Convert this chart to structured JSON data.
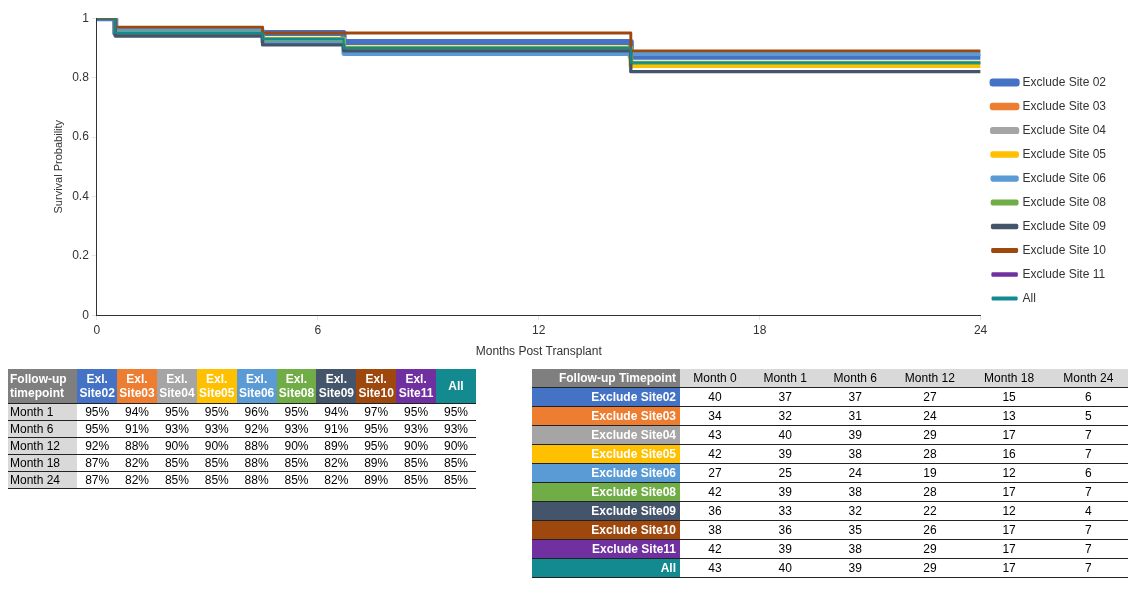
{
  "chart_data": [
    {
      "type": "step",
      "xlabel": "Months Post Transplant",
      "ylabel": "Survival Probability",
      "x": [
        0,
        0.5,
        4.5,
        6.7,
        14.5,
        24
      ],
      "xlim": [
        0,
        24
      ],
      "xticks": [
        0,
        6,
        12,
        18,
        24
      ],
      "ylim": [
        0,
        1
      ],
      "yticks": [
        0,
        0.2,
        0.4,
        0.6,
        0.8,
        1
      ],
      "grid": false,
      "legend": "right",
      "marker": "none",
      "series": [
        {
          "name": "Exclude Site 02",
          "color": "#4472c4",
          "values": [
            1,
            0.95,
            0.95,
            0.92,
            0.87,
            0.87
          ]
        },
        {
          "name": "Exclude Site 03",
          "color": "#ed7d31",
          "values": [
            null,
            null,
            null,
            null,
            null,
            null
          ]
        },
        {
          "name": "Exclude Site 04",
          "color": "#a5a5a5",
          "values": [
            null,
            null,
            null,
            null,
            null,
            null
          ]
        },
        {
          "name": "Exclude Site 05",
          "color": "#ffc000",
          "values": [
            null,
            null,
            0.93,
            0.9,
            0.84,
            0.84
          ]
        },
        {
          "name": "Exclude Site 06",
          "color": "#5b9bd5",
          "values": [
            1,
            0.96,
            0.92,
            0.88,
            0.88,
            0.88
          ]
        },
        {
          "name": "Exclude Site 08",
          "color": "#70ad47",
          "values": [
            1,
            0.95,
            0.93,
            0.9,
            0.85,
            0.85
          ]
        },
        {
          "name": "Exclude Site 09",
          "color": "#44546a",
          "values": [
            1,
            0.94,
            0.91,
            0.89,
            0.82,
            0.82
          ]
        },
        {
          "name": "Exclude Site 10",
          "color": "#9e480e",
          "values": [
            1,
            0.97,
            0.95,
            0.95,
            0.89,
            0.89
          ]
        },
        {
          "name": "Exclude Site 11",
          "color": "#7030a0",
          "values": [
            null,
            null,
            null,
            null,
            null,
            null
          ]
        },
        {
          "name": "All",
          "color": "#138a8f",
          "values": [
            1,
            0.95,
            0.93,
            0.9,
            0.85,
            0.85
          ]
        }
      ]
    },
    {
      "type": "heatmap",
      "data_labels": true,
      "title": "Follow-up timepoint",
      "categories": [
        "Exl. Site02",
        "Exl. Site03",
        "Exl. Site04",
        "Exl. Site05",
        "Exl. Site06",
        "Exl. Site08",
        "Exl. Site09",
        "Exl. Site10",
        "Exl. Site11",
        "All"
      ],
      "y_categories": [
        "Month 1",
        "Month 6",
        "Month 12",
        "Month 18",
        "Month 24"
      ],
      "cells": [
        [
          95,
          94,
          95,
          95,
          96,
          95,
          94,
          97,
          95,
          95
        ],
        [
          95,
          91,
          93,
          93,
          92,
          93,
          91,
          95,
          93,
          93
        ],
        [
          92,
          88,
          90,
          90,
          88,
          90,
          89,
          95,
          90,
          90
        ],
        [
          87,
          82,
          85,
          85,
          88,
          85,
          82,
          89,
          85,
          85
        ],
        [
          87,
          82,
          85,
          85,
          88,
          85,
          82,
          89,
          85,
          85
        ]
      ],
      "cell_labels": [
        [
          "95%",
          "94%",
          "95%",
          "95%",
          "96%",
          "95%",
          "94%",
          "97%",
          "95%",
          "95%"
        ],
        [
          "95%",
          "91%",
          "93%",
          "93%",
          "92%",
          "93%",
          "91%",
          "95%",
          "93%",
          "93%"
        ],
        [
          "92%",
          "88%",
          "90%",
          "90%",
          "88%",
          "90%",
          "89%",
          "95%",
          "90%",
          "90%"
        ],
        [
          "87%",
          "82%",
          "85%",
          "85%",
          "88%",
          "85%",
          "82%",
          "89%",
          "85%",
          "85%"
        ],
        [
          "87%",
          "82%",
          "85%",
          "85%",
          "88%",
          "85%",
          "82%",
          "89%",
          "85%",
          "85%"
        ]
      ]
    },
    {
      "type": "heatmap",
      "data_labels": true,
      "title": "Follow-up Timepoint",
      "categories": [
        "Month 0",
        "Month 1",
        "Month 6",
        "Month 12",
        "Month 18",
        "Month 24"
      ],
      "y_categories": [
        "Exclude Site02",
        "Exclude Site03",
        "Exclude Site04",
        "Exclude Site05",
        "Exclude Site06",
        "Exclude Site08",
        "Exclude Site09",
        "Exclude Site10",
        "Exclude Site11",
        "All"
      ],
      "cells": [
        [
          40,
          37,
          37,
          27,
          15,
          6
        ],
        [
          34,
          32,
          31,
          24,
          13,
          5
        ],
        [
          43,
          40,
          39,
          29,
          17,
          7
        ],
        [
          42,
          39,
          38,
          28,
          16,
          7
        ],
        [
          27,
          25,
          24,
          19,
          12,
          6
        ],
        [
          42,
          39,
          38,
          28,
          17,
          7
        ],
        [
          36,
          33,
          32,
          22,
          12,
          4
        ],
        [
          38,
          36,
          35,
          26,
          17,
          7
        ],
        [
          42,
          39,
          38,
          29,
          17,
          7
        ],
        [
          43,
          40,
          39,
          29,
          17,
          7
        ]
      ]
    }
  ]
}
